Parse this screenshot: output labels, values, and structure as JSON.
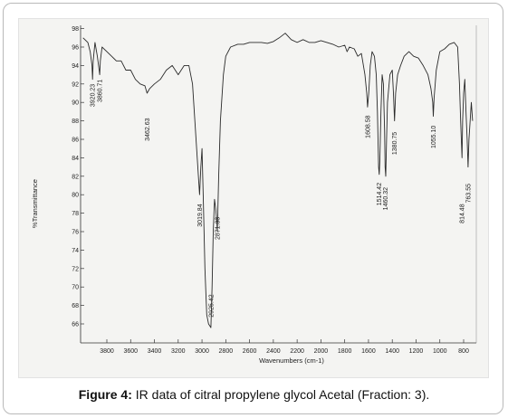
{
  "caption": {
    "label": "Figure 4:",
    "text": " IR data of citral propylene glycol Acetal (Fraction: 3)."
  },
  "chart_data": {
    "type": "line",
    "xlabel": "Wavenumbers (cm-1)",
    "ylabel": "%Transmittance",
    "xlim": [
      4000,
      720
    ],
    "ylim": [
      64,
      98
    ],
    "x_ticks": [
      3800,
      3600,
      3400,
      3200,
      3000,
      2800,
      2600,
      2400,
      2200,
      2000,
      1800,
      1600,
      1400,
      1200,
      1000,
      800
    ],
    "y_ticks": [
      66,
      68,
      70,
      72,
      74,
      76,
      78,
      80,
      82,
      84,
      86,
      88,
      90,
      92,
      94,
      96,
      98
    ],
    "series": [
      {
        "values_xy": [
          [
            4000,
            97.0
          ],
          [
            3960,
            96.5
          ],
          [
            3940,
            95.5
          ],
          [
            3925,
            94.0
          ],
          [
            3920,
            92.5
          ],
          [
            3915,
            94.5
          ],
          [
            3900,
            96.5
          ],
          [
            3880,
            95.0
          ],
          [
            3865,
            93.5
          ],
          [
            3860,
            93.0
          ],
          [
            3855,
            94.5
          ],
          [
            3840,
            96.0
          ],
          [
            3800,
            95.5
          ],
          [
            3760,
            95.0
          ],
          [
            3720,
            94.5
          ],
          [
            3680,
            94.5
          ],
          [
            3640,
            93.5
          ],
          [
            3600,
            93.5
          ],
          [
            3560,
            92.5
          ],
          [
            3520,
            92.0
          ],
          [
            3480,
            91.8
          ],
          [
            3462,
            91.0
          ],
          [
            3440,
            91.5
          ],
          [
            3400,
            92.0
          ],
          [
            3350,
            92.5
          ],
          [
            3300,
            93.5
          ],
          [
            3250,
            94.0
          ],
          [
            3200,
            93.0
          ],
          [
            3150,
            94.0
          ],
          [
            3110,
            94.0
          ],
          [
            3080,
            92.0
          ],
          [
            3060,
            88.0
          ],
          [
            3040,
            84.0
          ],
          [
            3030,
            82.0
          ],
          [
            3020,
            80.0
          ],
          [
            3010,
            83.0
          ],
          [
            3000,
            85.0
          ],
          [
            2990,
            80.0
          ],
          [
            2975,
            72.0
          ],
          [
            2960,
            67.0
          ],
          [
            2945,
            66.0
          ],
          [
            2935,
            65.8
          ],
          [
            2925,
            65.6
          ],
          [
            2915,
            70.0
          ],
          [
            2905,
            76.0
          ],
          [
            2895,
            79.5
          ],
          [
            2885,
            78.5
          ],
          [
            2875,
            77.0
          ],
          [
            2871,
            76.0
          ],
          [
            2860,
            82.0
          ],
          [
            2845,
            88.0
          ],
          [
            2820,
            93.0
          ],
          [
            2800,
            95.0
          ],
          [
            2760,
            96.0
          ],
          [
            2700,
            96.3
          ],
          [
            2650,
            96.3
          ],
          [
            2600,
            96.5
          ],
          [
            2550,
            96.5
          ],
          [
            2500,
            96.5
          ],
          [
            2450,
            96.4
          ],
          [
            2400,
            96.6
          ],
          [
            2350,
            97.0
          ],
          [
            2300,
            97.5
          ],
          [
            2250,
            96.8
          ],
          [
            2200,
            96.5
          ],
          [
            2150,
            96.8
          ],
          [
            2100,
            96.5
          ],
          [
            2050,
            96.5
          ],
          [
            2000,
            96.7
          ],
          [
            1950,
            96.5
          ],
          [
            1900,
            96.3
          ],
          [
            1850,
            96.0
          ],
          [
            1800,
            96.2
          ],
          [
            1780,
            95.5
          ],
          [
            1760,
            96.0
          ],
          [
            1720,
            95.8
          ],
          [
            1690,
            95.0
          ],
          [
            1660,
            95.3
          ],
          [
            1630,
            93.0
          ],
          [
            1615,
            91.0
          ],
          [
            1608,
            89.5
          ],
          [
            1598,
            91.0
          ],
          [
            1585,
            94.0
          ],
          [
            1570,
            95.5
          ],
          [
            1550,
            95.0
          ],
          [
            1535,
            93.0
          ],
          [
            1525,
            89.0
          ],
          [
            1515,
            83.0
          ],
          [
            1510,
            82.2
          ],
          [
            1505,
            83.5
          ],
          [
            1495,
            89.0
          ],
          [
            1485,
            93.0
          ],
          [
            1475,
            92.0
          ],
          [
            1465,
            87.0
          ],
          [
            1460,
            83.0
          ],
          [
            1455,
            82.0
          ],
          [
            1448,
            86.0
          ],
          [
            1440,
            90.0
          ],
          [
            1420,
            93.0
          ],
          [
            1400,
            93.5
          ],
          [
            1390,
            91.0
          ],
          [
            1381,
            88.0
          ],
          [
            1372,
            91.0
          ],
          [
            1355,
            93.0
          ],
          [
            1330,
            94.0
          ],
          [
            1300,
            95.0
          ],
          [
            1260,
            95.5
          ],
          [
            1220,
            95.0
          ],
          [
            1180,
            94.8
          ],
          [
            1140,
            94.0
          ],
          [
            1100,
            93.0
          ],
          [
            1075,
            91.5
          ],
          [
            1060,
            90.0
          ],
          [
            1055,
            88.5
          ],
          [
            1048,
            90.5
          ],
          [
            1030,
            93.5
          ],
          [
            1000,
            95.5
          ],
          [
            960,
            95.8
          ],
          [
            920,
            96.3
          ],
          [
            880,
            96.5
          ],
          [
            850,
            96.0
          ],
          [
            835,
            92.0
          ],
          [
            825,
            88.0
          ],
          [
            814,
            84.0
          ],
          [
            808,
            88.0
          ],
          [
            800,
            91.0
          ],
          [
            790,
            92.5
          ],
          [
            780,
            89.0
          ],
          [
            770,
            86.0
          ],
          [
            763,
            83.0
          ],
          [
            755,
            86.0
          ],
          [
            745,
            88.0
          ],
          [
            735,
            90.0
          ],
          [
            725,
            88.0
          ]
        ]
      }
    ],
    "annotations": [
      {
        "text": "3920.23",
        "x": 3920,
        "y": 92.0
      },
      {
        "text": "3860.71",
        "x": 3860,
        "y": 92.5
      },
      {
        "text": "3462.63",
        "x": 3462,
        "y": 88.3
      },
      {
        "text": "3019.84",
        "x": 3020,
        "y": 79.0
      },
      {
        "text": "2925.42",
        "x": 2925,
        "y": 69.2
      },
      {
        "text": "2871.33",
        "x": 2871,
        "y": 77.6
      },
      {
        "text": "1608.58",
        "x": 1608,
        "y": 88.6
      },
      {
        "text": "1514.42",
        "x": 1512,
        "y": 81.3
      },
      {
        "text": "1460.32",
        "x": 1458,
        "y": 80.8
      },
      {
        "text": "1380.75",
        "x": 1381,
        "y": 86.8
      },
      {
        "text": "1055.10",
        "x": 1055,
        "y": 87.5
      },
      {
        "text": "814.48",
        "x": 814,
        "y": 79.0
      },
      {
        "text": "763.55",
        "x": 763,
        "y": 81.2
      }
    ]
  }
}
